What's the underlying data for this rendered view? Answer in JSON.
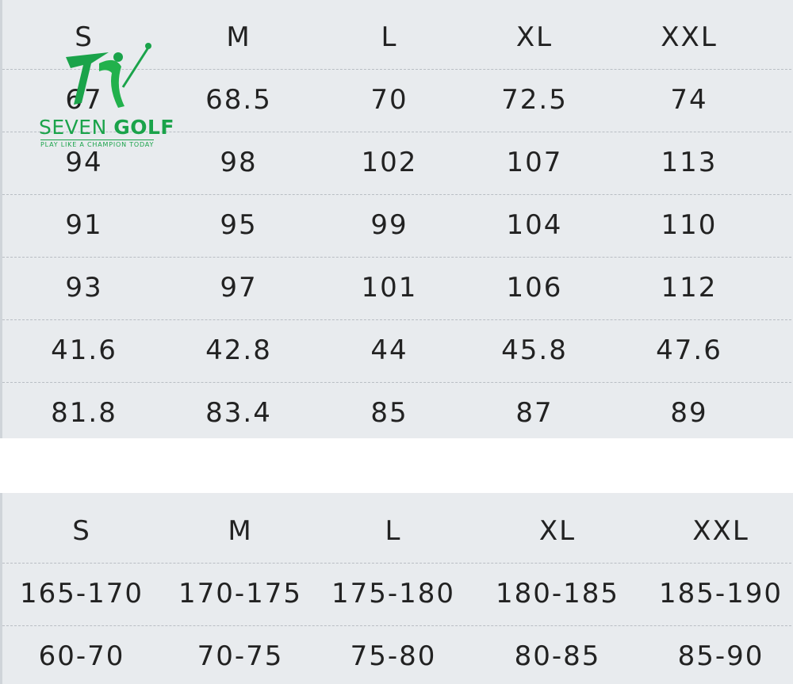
{
  "logo": {
    "brand": "SEVEN",
    "brand_bold": "GOLF",
    "tagline": "PLAY LIKE A CHAMPION TODAY"
  },
  "tables": [
    {
      "header": [
        "S",
        "M",
        "L",
        "XL",
        "XXL"
      ],
      "rows": [
        [
          "67",
          "68.5",
          "70",
          "72.5",
          "74"
        ],
        [
          "94",
          "98",
          "102",
          "107",
          "113"
        ],
        [
          "91",
          "95",
          "99",
          "104",
          "110"
        ],
        [
          "93",
          "97",
          "101",
          "106",
          "112"
        ],
        [
          "41.6",
          "42.8",
          "44",
          "45.8",
          "47.6"
        ],
        [
          "81.8",
          "83.4",
          "85",
          "87",
          "89"
        ]
      ]
    },
    {
      "header": [
        "S",
        "M",
        "L",
        "XL",
        "XXL"
      ],
      "rows": [
        [
          "165-170",
          "170-175",
          "175-180",
          "180-185",
          "185-190"
        ],
        [
          "60-70",
          "70-75",
          "75-80",
          "80-85",
          "85-90"
        ]
      ]
    }
  ]
}
